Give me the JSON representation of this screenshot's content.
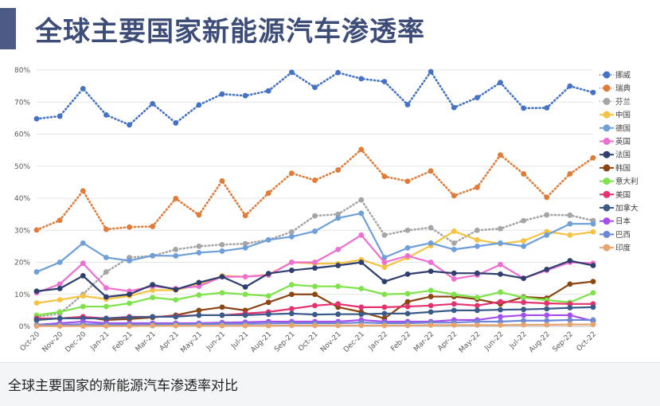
{
  "header": {
    "title": "全球主要国家新能源汽车渗透率"
  },
  "caption": {
    "text": "全球主要国家的新能源汽车渗透率对比"
  },
  "chart_data": {
    "type": "line",
    "title": "",
    "xlabel": "",
    "ylabel": "",
    "ylim": [
      0,
      80
    ],
    "yticks": [
      "0%",
      "10%",
      "20%",
      "30%",
      "40%",
      "50%",
      "60%",
      "70%",
      "80%"
    ],
    "grid": true,
    "legend_position": "right",
    "categories": [
      "Oct-20",
      "Nov-20",
      "Dec-20",
      "Jan-21",
      "Feb-21",
      "Mar-21",
      "Apr-21",
      "May-21",
      "Jun-21",
      "Jul-21",
      "Aug-21",
      "Sep-21",
      "Oct-21",
      "Nov-21",
      "Dec-21",
      "Jan-22",
      "Feb-22",
      "Mar-22",
      "Apr-22",
      "May-22",
      "Jun-22",
      "Jul-22",
      "Aug-22",
      "Sep-22",
      "Oct-22"
    ],
    "series": [
      {
        "name": "挪威",
        "color": "#4472c4",
        "dash": "dotted",
        "values": [
          64.8,
          65.6,
          74.2,
          66.0,
          62.9,
          69.5,
          63.5,
          69.1,
          72.5,
          72.0,
          73.5,
          79.3,
          74.6,
          79.2,
          77.3,
          76.4,
          69.2,
          79.5,
          68.3,
          71.4,
          76.1,
          68.1,
          68.2,
          75.0,
          73.0
        ]
      },
      {
        "name": "瑞典",
        "color": "#e07b39",
        "dash": "dotted",
        "values": [
          30.1,
          33.1,
          42.3,
          30.3,
          31.0,
          31.2,
          39.9,
          34.8,
          45.4,
          34.6,
          41.6,
          47.8,
          45.6,
          48.8,
          55.2,
          46.8,
          45.3,
          48.5,
          40.8,
          43.4,
          53.5,
          47.6,
          40.3,
          47.6,
          52.6
        ]
      },
      {
        "name": "芬兰",
        "color": "#a5a5a5",
        "dash": "dotted",
        "values": [
          3.0,
          4.0,
          10.0,
          17.0,
          21.5,
          22.0,
          24.0,
          25.0,
          25.5,
          25.8,
          27.0,
          29.5,
          34.5,
          35.0,
          39.5,
          28.5,
          30.0,
          30.8,
          26.0,
          30.0,
          30.5,
          33.0,
          34.8,
          34.7,
          33.0
        ]
      },
      {
        "name": "中国",
        "color": "#f5c242",
        "dash": "solid",
        "values": [
          7.3,
          8.3,
          9.5,
          8.5,
          9.5,
          11.3,
          11.3,
          13.0,
          15.8,
          15.5,
          16.2,
          20.0,
          19.6,
          19.6,
          20.8,
          18.5,
          21.5,
          25.2,
          29.7,
          27.0,
          25.8,
          26.7,
          29.6,
          28.5,
          29.5
        ]
      },
      {
        "name": "德国",
        "color": "#6e9fd8",
        "dash": "solid",
        "values": [
          17.0,
          20.0,
          26.0,
          21.5,
          20.5,
          22.1,
          22.0,
          23.0,
          23.5,
          24.5,
          27.0,
          28.0,
          29.7,
          33.8,
          35.3,
          21.5,
          24.5,
          26.0,
          24.0,
          25.0,
          26.0,
          25.0,
          28.5,
          32.0,
          32.0
        ]
      },
      {
        "name": "英国",
        "color": "#ee6fd0",
        "dash": "solid",
        "values": [
          10.5,
          13.2,
          19.7,
          12.0,
          11.0,
          12.5,
          11.8,
          12.5,
          15.5,
          15.5,
          16.0,
          20.0,
          20.0,
          24.0,
          28.5,
          20.0,
          22.0,
          20.0,
          14.8,
          16.0,
          19.3,
          15.0,
          17.5,
          20.0,
          19.7
        ]
      },
      {
        "name": "法国",
        "color": "#2e3f6e",
        "dash": "solid",
        "values": [
          11.0,
          11.8,
          15.8,
          9.2,
          10.0,
          13.0,
          11.5,
          13.7,
          15.5,
          12.3,
          16.5,
          17.5,
          18.2,
          19.0,
          20.0,
          14.0,
          16.3,
          17.2,
          16.6,
          16.6,
          16.3,
          15.0,
          17.8,
          20.5,
          19.0
        ]
      },
      {
        "name": "韩国",
        "color": "#8b4513",
        "dash": "solid",
        "values": [
          2.0,
          2.5,
          3.0,
          2.0,
          2.3,
          2.8,
          3.5,
          5.0,
          6.0,
          5.0,
          7.5,
          10.0,
          10.0,
          6.0,
          4.5,
          2.5,
          7.7,
          9.3,
          9.3,
          8.5,
          7.0,
          9.2,
          8.8,
          13.2,
          14.0
        ]
      },
      {
        "name": "意大利",
        "color": "#7ee34a",
        "dash": "solid",
        "values": [
          3.5,
          4.5,
          6.2,
          6.2,
          7.2,
          9.0,
          8.3,
          9.8,
          10.5,
          10.0,
          9.5,
          13.0,
          12.5,
          12.5,
          11.8,
          10.0,
          10.2,
          11.2,
          10.0,
          9.0,
          10.7,
          9.0,
          8.2,
          7.5,
          10.5
        ]
      },
      {
        "name": "美国",
        "color": "#e5326e",
        "dash": "solid",
        "values": [
          2.5,
          2.5,
          3.0,
          2.5,
          3.0,
          3.0,
          3.2,
          3.5,
          3.5,
          4.0,
          4.5,
          5.5,
          6.5,
          7.0,
          6.0,
          6.0,
          6.2,
          6.5,
          7.0,
          6.5,
          7.7,
          7.5,
          7.2,
          7.0,
          7.0
        ]
      },
      {
        "name": "加拿大",
        "color": "#3a5a8a",
        "dash": "solid",
        "values": [
          2.0,
          2.5,
          2.5,
          2.5,
          2.8,
          3.0,
          3.0,
          3.5,
          3.5,
          3.5,
          3.8,
          4.0,
          3.7,
          3.8,
          3.8,
          4.0,
          4.0,
          4.5,
          5.0,
          5.0,
          5.2,
          5.3,
          5.5,
          5.8,
          6.0
        ]
      },
      {
        "name": "日本",
        "color": "#a64ded",
        "dash": "solid",
        "values": [
          0.5,
          1.0,
          1.5,
          1.0,
          1.0,
          1.0,
          1.0,
          1.0,
          1.2,
          1.3,
          1.5,
          1.5,
          1.5,
          1.5,
          2.0,
          1.5,
          1.5,
          1.5,
          2.0,
          2.0,
          3.0,
          3.5,
          3.5,
          3.5,
          1.7
        ]
      },
      {
        "name": "巴西",
        "color": "#6b87d6",
        "dash": "solid",
        "values": [
          0.5,
          0.5,
          0.7,
          0.6,
          0.6,
          0.6,
          0.7,
          0.7,
          0.8,
          0.8,
          0.9,
          1.0,
          1.0,
          1.0,
          1.2,
          1.0,
          1.0,
          1.2,
          1.2,
          1.5,
          1.5,
          1.8,
          1.8,
          2.0,
          2.0
        ]
      },
      {
        "name": "印度",
        "color": "#e6a56e",
        "dash": "solid",
        "values": [
          0.1,
          0.1,
          0.1,
          0.1,
          0.1,
          0.2,
          0.2,
          0.2,
          0.2,
          0.2,
          0.2,
          0.3,
          0.3,
          0.3,
          0.3,
          0.3,
          0.3,
          0.4,
          0.4,
          0.4,
          0.4,
          0.5,
          0.5,
          0.6,
          0.6
        ]
      }
    ]
  }
}
